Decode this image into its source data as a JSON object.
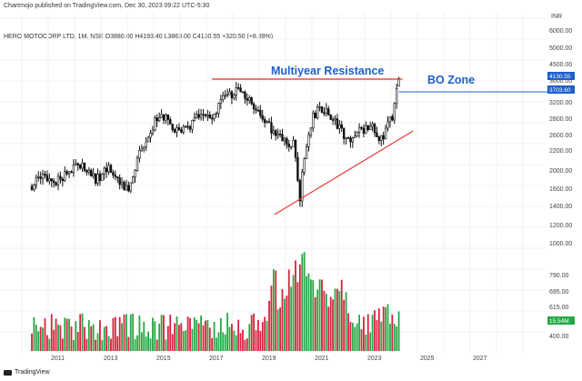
{
  "header": {
    "published": "Chartmojo published on TradingView.com, Dec 30, 2023 09:22 UTC-5:30",
    "ohlc": "HERO MOTOCORP LTD, 1M, NSE  O3880.00  H4193.40  L3863.00  C4130.55  +320.50 (+8.39%)"
  },
  "branding": {
    "footer": "TradingView",
    "logo_icon": "tradingview-logo-icon"
  },
  "colors": {
    "up": "#26a69a",
    "down": "#ef5350",
    "vol_up": "#27a844",
    "vol_down": "#d9213d",
    "resistance": "#e0282a",
    "support": "#e53935",
    "annotation": "#1e5fcc",
    "candle": "#111111",
    "price_label": "#1e5fcc",
    "vol_label": "#27a844"
  },
  "chart_data": {
    "type": "candlestick",
    "symbol": "HERO MOTOCORP LTD",
    "interval": "1M",
    "exchange": "NSE",
    "last": {
      "open": 3880.0,
      "high": 4193.4,
      "low": 3863.0,
      "close": 4130.55,
      "change": 320.5,
      "change_pct": 8.39
    },
    "x_axis": {
      "ticks": [
        "2011",
        "2013",
        "2015",
        "2017",
        "2019",
        "2021",
        "2023",
        "2025",
        "2027"
      ]
    },
    "price_axis": {
      "ticks": [
        "6000.00",
        "5000.00",
        "4500.00",
        "3600.00",
        "3200.00",
        "2800.00",
        "2600.00",
        "2200.00",
        "2000.00",
        "1600.00",
        "1400.00",
        "1200.00",
        "1000.00"
      ],
      "unit": "INR",
      "scale": "log"
    },
    "volume_axis": {
      "ticks": [
        "790.00",
        "695.00",
        "615.00",
        "400.00"
      ]
    },
    "labels": {
      "price": "4130.55",
      "level": "3703.60",
      "volume": "15.54M"
    },
    "annotations": {
      "resistance": "Multiyear Resistance",
      "breakout": "BO Zone"
    },
    "resistance_level": 3703.6,
    "support_line": {
      "from": [
        "2019-10",
        1420
      ],
      "to": [
        "2024-04",
        2480
      ]
    },
    "series": [
      {
        "name": "close_path",
        "points": [
          [
            "2010-01",
            1700
          ],
          [
            "2010-06",
            1850
          ],
          [
            "2010-12",
            1750
          ],
          [
            "2011-06",
            1950
          ],
          [
            "2011-12",
            2000
          ],
          [
            "2012-06",
            1800
          ],
          [
            "2012-12",
            1950
          ],
          [
            "2013-06",
            1750
          ],
          [
            "2013-09",
            1600
          ],
          [
            "2014-01",
            2100
          ],
          [
            "2014-06",
            2650
          ],
          [
            "2014-12",
            3100
          ],
          [
            "2015-06",
            2650
          ],
          [
            "2015-12",
            2700
          ],
          [
            "2016-06",
            3100
          ],
          [
            "2016-11",
            2950
          ],
          [
            "2017-03",
            3450
          ],
          [
            "2017-06",
            3500
          ],
          [
            "2017-10",
            3800
          ],
          [
            "2018-03",
            3500
          ],
          [
            "2018-06",
            3300
          ],
          [
            "2018-09",
            2950
          ],
          [
            "2019-03",
            2700
          ],
          [
            "2019-08",
            2450
          ],
          [
            "2019-12",
            2400
          ],
          [
            "2020-03",
            1550
          ],
          [
            "2020-05",
            2200
          ],
          [
            "2020-09",
            3000
          ],
          [
            "2020-12",
            3250
          ],
          [
            "2021-03",
            3100
          ],
          [
            "2021-06",
            2950
          ],
          [
            "2021-09",
            2800
          ],
          [
            "2021-12",
            2450
          ],
          [
            "2022-03",
            2600
          ],
          [
            "2022-06",
            2700
          ],
          [
            "2022-09",
            2750
          ],
          [
            "2022-12",
            2800
          ],
          [
            "2023-03",
            2400
          ],
          [
            "2023-05",
            2600
          ],
          [
            "2023-07",
            3000
          ],
          [
            "2023-09",
            3050
          ],
          [
            "2023-11",
            3800
          ],
          [
            "2023-12",
            4130
          ]
        ]
      }
    ],
    "volume_profile": {
      "grid_days": 180,
      "note_peak": "2020-03"
    }
  }
}
